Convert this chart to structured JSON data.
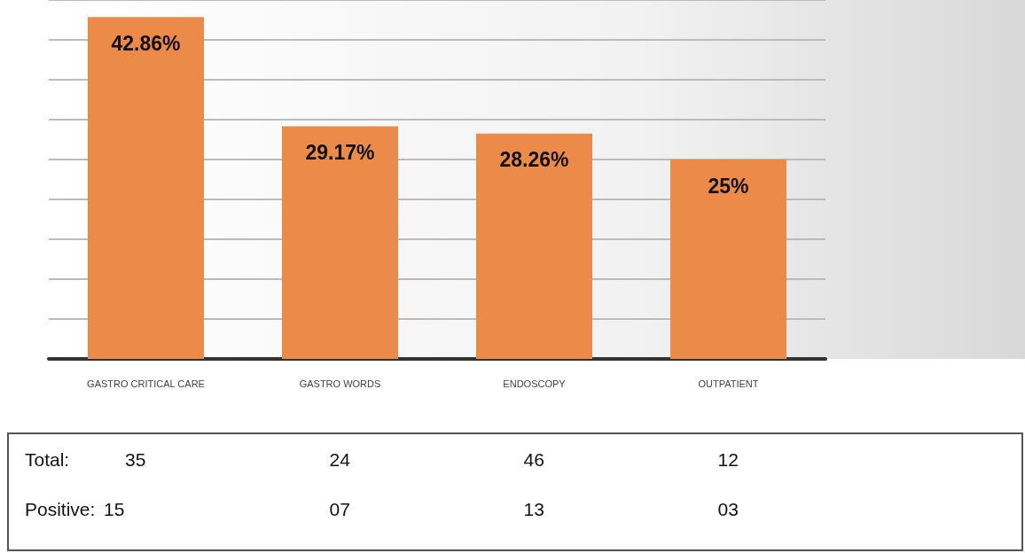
{
  "chart_data": {
    "type": "bar",
    "categories": [
      "GASTRO CRITICAL CARE",
      "GASTRO WORDS",
      "ENDOSCOPY",
      "OUTPATIENT"
    ],
    "values": [
      42.86,
      29.17,
      28.26,
      25
    ],
    "value_labels": [
      "42.86%",
      "29.17%",
      "28.26%",
      "25%"
    ],
    "color": "#ec8a4a",
    "ylim": [
      0,
      45
    ],
    "yticks": [
      {
        "value": 0,
        "label": null
      },
      {
        "value": 5,
        "label": null
      },
      {
        "value": 10,
        "label": null
      },
      {
        "value": 15,
        "label": null
      },
      {
        "value": 20,
        "label": null
      },
      {
        "value": 25,
        "label": null
      },
      {
        "value": 30,
        "label": null
      },
      {
        "value": 35,
        "label": null
      },
      {
        "value": 40,
        "label": null
      },
      {
        "value": 45,
        "label": null
      }
    ],
    "tick_labels": "x",
    "grid": "y",
    "annotations": [
      "Total:",
      "35",
      "24",
      "46",
      "12",
      "Positive:",
      "15",
      "07",
      "13",
      "03"
    ]
  }
}
